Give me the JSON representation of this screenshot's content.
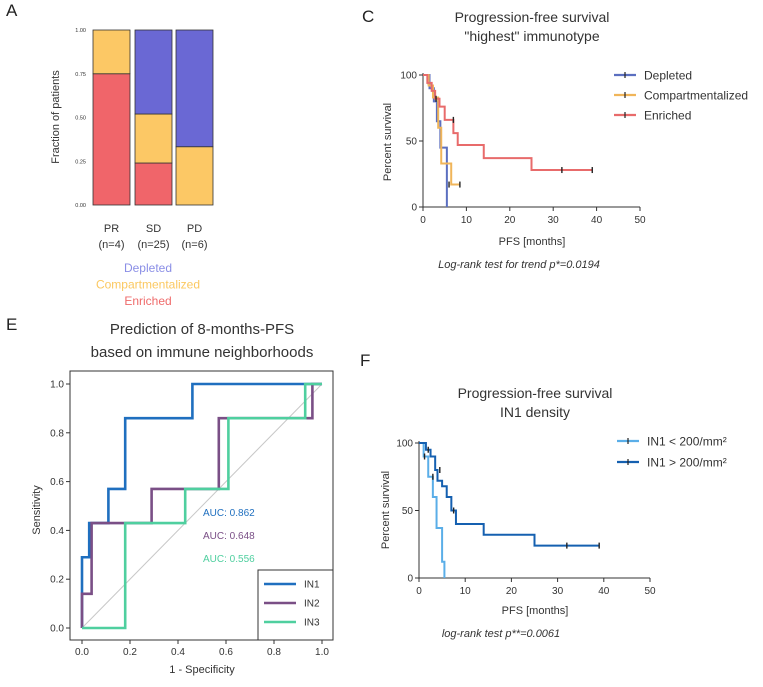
{
  "panels": {
    "a": {
      "letter": "A",
      "chart_data": {
        "type": "bar",
        "stacked": true,
        "ylabel": "Fraction of patients",
        "ylim": [
          0,
          1
        ],
        "yticks": [
          "0.00",
          "0.25",
          "0.50",
          "0.75",
          "1.00"
        ],
        "categories": [
          "PR",
          "SD",
          "PD"
        ],
        "category_n": [
          "(n=4)",
          "(n=25)",
          "(n=6)"
        ],
        "series": [
          {
            "name": "Enriched",
            "color": "#f0656a",
            "values": [
              0.75,
              0.24,
              0.0
            ]
          },
          {
            "name": "Compartmentalized",
            "color": "#fcc865",
            "values": [
              0.25,
              0.28,
              0.333
            ]
          },
          {
            "name": "Depleted",
            "color": "#6a68d4",
            "values": [
              0.0,
              0.48,
              0.667
            ]
          }
        ],
        "legend": [
          {
            "label": "Depleted",
            "color": "#8a8ee6"
          },
          {
            "label": "Compartmentalized",
            "color": "#fbc860"
          },
          {
            "label": "Enriched",
            "color": "#ef6b6b"
          }
        ]
      }
    },
    "c": {
      "letter": "C",
      "chart_data": {
        "type": "line",
        "step": true,
        "title_line1": "Progression-free survival",
        "title_line2": "\"highest\" immunotype",
        "xlabel": "PFS [months]",
        "ylabel": "Percent survival",
        "xlim": [
          0,
          50
        ],
        "ylim": [
          0,
          100
        ],
        "xticks": [
          0,
          10,
          20,
          30,
          40,
          50
        ],
        "yticks": [
          0,
          50,
          100
        ],
        "series": [
          {
            "name": "Depleted",
            "color": "#5b6fc0",
            "x": [
              0,
              1.5,
              2.5,
              3.2,
              4.0,
              5.5
            ],
            "y": [
              100,
              90,
              80,
              65,
              45,
              0
            ]
          },
          {
            "name": "Compartmentalized",
            "color": "#f0b55a",
            "x": [
              0,
              1.3,
              2.3,
              3.5,
              4.2,
              5.2,
              6.5,
              8.5
            ],
            "y": [
              100,
              92,
              83,
              60,
              33,
              33,
              17,
              17
            ]
          },
          {
            "name": "Enriched",
            "color": "#e86b6b",
            "x": [
              0,
              1.0,
              2.0,
              2.8,
              3.8,
              5.0,
              7.0,
              8.0,
              14.0,
              25.0,
              32.0,
              39.0
            ],
            "y": [
              100,
              94,
              88,
              82,
              76,
              66,
              56,
              47,
              37,
              28,
              28,
              28
            ]
          }
        ],
        "censor": {
          "Depleted": [
            [
              1.2,
              95
            ]
          ],
          "Compartmentalized": [
            [
              6.0,
              17
            ],
            [
              8.5,
              17
            ]
          ],
          "Enriched": [
            [
              3.0,
              82
            ],
            [
              7.0,
              66
            ],
            [
              32.0,
              28
            ],
            [
              39.0,
              28
            ]
          ]
        },
        "annotation": "Log-rank test for trend p*=0.0194"
      }
    },
    "e": {
      "letter": "E",
      "chart_data": {
        "type": "line",
        "step": true,
        "title_line1": "Prediction of 8-months-PFS",
        "title_line2": "based on immune neighborhoods",
        "xlabel": "1 - Specificity",
        "ylabel": "Sensitivity",
        "xlim": [
          0,
          1
        ],
        "ylim": [
          0,
          1
        ],
        "xticks": [
          "0.0",
          "0.2",
          "0.4",
          "0.6",
          "0.8",
          "1.0"
        ],
        "yticks": [
          "0.0",
          "0.2",
          "0.4",
          "0.6",
          "0.8",
          "1.0"
        ],
        "series": [
          {
            "name": "IN1",
            "color": "#1f6fbf",
            "auc": "AUC: 0.862",
            "x": [
              0,
              0,
              0.03,
              0.03,
              0.11,
              0.11,
              0.18,
              0.18,
              0.46,
              0.46,
              1.0
            ],
            "y": [
              0,
              0.29,
              0.29,
              0.43,
              0.43,
              0.57,
              0.57,
              0.86,
              0.86,
              1.0,
              1.0
            ]
          },
          {
            "name": "IN2",
            "color": "#7a4f86",
            "auc": "AUC: 0.648",
            "x": [
              0,
              0,
              0.04,
              0.04,
              0.29,
              0.29,
              0.57,
              0.57,
              0.96,
              0.96,
              1.0
            ],
            "y": [
              0,
              0.14,
              0.14,
              0.43,
              0.43,
              0.57,
              0.57,
              0.86,
              0.86,
              1.0,
              1.0
            ]
          },
          {
            "name": "IN3",
            "color": "#4fcf9f",
            "auc": "AUC: 0.556",
            "x": [
              0,
              0.18,
              0.18,
              0.43,
              0.43,
              0.61,
              0.61,
              0.93,
              0.93,
              1.0
            ],
            "y": [
              0,
              0,
              0.43,
              0.43,
              0.57,
              0.57,
              0.86,
              0.86,
              1.0,
              1.0
            ]
          }
        ]
      }
    },
    "f": {
      "letter": "F",
      "chart_data": {
        "type": "line",
        "step": true,
        "title_line1": "Progression-free survival",
        "title_line2": "IN1 density",
        "xlabel": "PFS [months]",
        "ylabel": "Percent survival",
        "xlim": [
          0,
          50
        ],
        "ylim": [
          0,
          100
        ],
        "xticks": [
          0,
          10,
          20,
          30,
          40,
          50
        ],
        "yticks": [
          0,
          50,
          100
        ],
        "series": [
          {
            "name": "IN1 < 200/mm²",
            "color": "#5aaee8",
            "x": [
              0,
              1.0,
              2.0,
              3.0,
              3.8,
              5.0,
              5.5
            ],
            "y": [
              100,
              90,
              75,
              60,
              37,
              12,
              0
            ]
          },
          {
            "name": "IN1 > 200/mm²",
            "color": "#1560b0",
            "x": [
              0,
              1.5,
              2.5,
              3.5,
              4.0,
              5.0,
              6.0,
              7.0,
              8.0,
              14.0,
              25.0,
              39.0
            ],
            "y": [
              100,
              95,
              90,
              80,
              72,
              68,
              60,
              50,
              40,
              32,
              24,
              24
            ]
          }
        ],
        "censor": {
          "IN1 < 200/mm²": [
            [
              1.2,
              90
            ],
            [
              3.0,
              75
            ]
          ],
          "IN1 > 200/mm²": [
            [
              2.0,
              95
            ],
            [
              4.5,
              80
            ],
            [
              7.5,
              50
            ],
            [
              32.0,
              24
            ],
            [
              39.0,
              24
            ]
          ]
        },
        "annotation": "log-rank test p**=0.0061"
      }
    }
  }
}
